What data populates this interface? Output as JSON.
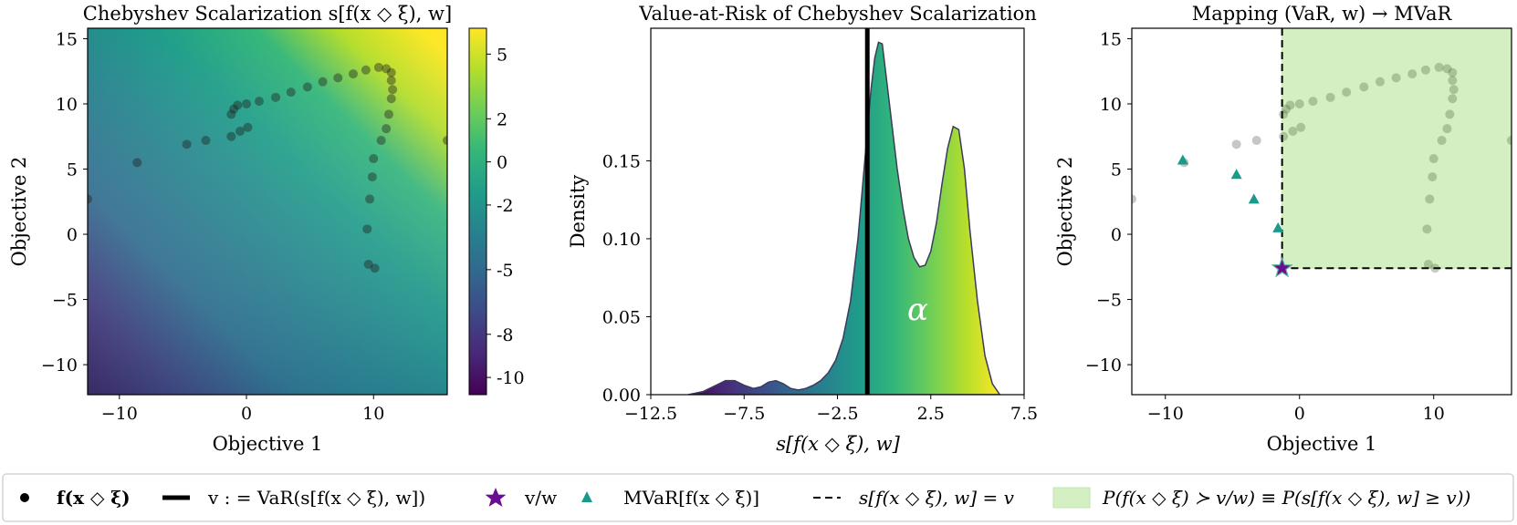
{
  "figure": {
    "legend": {
      "items": [
        {
          "symbol": "dot",
          "label": "f(x ◇ ξ)"
        },
        {
          "symbol": "thick-line",
          "label": "v : = VaR(s[f(x ◇ ξ), w])"
        },
        {
          "symbol": "star",
          "label": "v/w"
        },
        {
          "symbol": "triangle",
          "label": "MVaR[f(x ◇ ξ)]"
        },
        {
          "symbol": "dashed-line",
          "label": "s[f(x ◇ ξ), w] = v"
        },
        {
          "symbol": "green-patch",
          "label": "P(f(x ◇ ξ) ≻ v/w) ≡ P(s[f(x ◇ ξ), w] ≥ v))"
        }
      ]
    },
    "colors": {
      "viridis": [
        "#440154",
        "#482878",
        "#3e4989",
        "#31688e",
        "#26828e",
        "#1f9e89",
        "#35b779",
        "#6ece58",
        "#b5de2b",
        "#fde725"
      ],
      "star": "#6a0d91",
      "triangle": "#1a9a8a",
      "patch": "#d4efc2",
      "patch_edge": "#c4e6b0"
    }
  },
  "chart_data": [
    {
      "type": "scatter",
      "panel": "left",
      "title": "Chebyshev Scalarization   s[f(x ◇ ξ), w]",
      "xlabel": "Objective 1",
      "ylabel": "Objective 2",
      "xlim": [
        -12.5,
        15.8
      ],
      "ylim": [
        -12.3,
        15.8
      ],
      "xticks": [
        -10,
        0,
        10
      ],
      "xticklabels": [
        "−10",
        "0",
        "10"
      ],
      "yticks": [
        -10,
        -5,
        0,
        5,
        10,
        15
      ],
      "yticklabels": [
        "−10",
        "−5",
        "0",
        "5",
        "10",
        "15"
      ],
      "colorbar": {
        "range": [
          -10.8,
          6.2
        ],
        "ticks": [
          5,
          2,
          0,
          -2,
          -5,
          -8,
          -10
        ],
        "ticklabels": [
          "5",
          "2",
          "0",
          "-2",
          "-5",
          "-8",
          "-10"
        ]
      },
      "points": [
        [
          -12.5,
          2.7
        ],
        [
          -8.6,
          5.5
        ],
        [
          -4.7,
          6.9
        ],
        [
          -3.2,
          7.2
        ],
        [
          -1.2,
          7.5
        ],
        [
          -0.5,
          7.9
        ],
        [
          0.1,
          8.2
        ],
        [
          -1.2,
          9.2
        ],
        [
          -1.0,
          9.6
        ],
        [
          -0.7,
          9.9
        ],
        [
          0.0,
          10.0
        ],
        [
          1.0,
          10.2
        ],
        [
          2.3,
          10.5
        ],
        [
          3.5,
          10.9
        ],
        [
          4.8,
          11.3
        ],
        [
          6.0,
          11.7
        ],
        [
          7.2,
          12.0
        ],
        [
          8.4,
          12.3
        ],
        [
          9.4,
          12.6
        ],
        [
          10.4,
          12.8
        ],
        [
          11.0,
          12.7
        ],
        [
          11.4,
          12.4
        ],
        [
          11.4,
          11.8
        ],
        [
          11.5,
          11.1
        ],
        [
          11.4,
          10.4
        ],
        [
          11.2,
          9.2
        ],
        [
          11.0,
          8.1
        ],
        [
          10.6,
          7.2
        ],
        [
          10.0,
          5.8
        ],
        [
          9.9,
          4.4
        ],
        [
          9.7,
          2.7
        ],
        [
          9.5,
          0.4
        ],
        [
          9.6,
          -2.3
        ],
        [
          10.1,
          -2.6
        ],
        [
          15.8,
          7.2
        ]
      ]
    },
    {
      "type": "area",
      "panel": "middle",
      "title": "Value-at-Risk of Chebyshev Scalarization",
      "xlabel": "s[f(x ◇ ξ), w]",
      "ylabel": "Density",
      "xlim": [
        -12.5,
        7.5
      ],
      "ylim": [
        0,
        0.235
      ],
      "xticks": [
        -12.5,
        -7.5,
        -2.5,
        2.5,
        7.5
      ],
      "xticklabels": [
        "−12.5",
        "−7.5",
        "−2.5",
        "2.5",
        "7.5"
      ],
      "yticks": [
        0.0,
        0.05,
        0.1,
        0.15
      ],
      "yticklabels": [
        "0.00",
        "0.05",
        "0.10",
        "0.15"
      ],
      "var_line_x": -0.9,
      "annotation": "α",
      "x": [
        -10.5,
        -9.7,
        -9.0,
        -8.5,
        -8.0,
        -7.5,
        -7.0,
        -6.6,
        -6.2,
        -5.8,
        -5.4,
        -5.0,
        -4.6,
        -4.2,
        -3.8,
        -3.4,
        -3.0,
        -2.6,
        -2.2,
        -1.8,
        -1.4,
        -1.0,
        -0.7,
        -0.5,
        -0.3,
        -0.1,
        0.1,
        0.4,
        0.7,
        1.0,
        1.3,
        1.6,
        1.9,
        2.2,
        2.5,
        2.8,
        3.1,
        3.4,
        3.7,
        4.0,
        4.3,
        4.6,
        5.0,
        5.4,
        5.8,
        6.2
      ],
      "y": [
        0.0,
        0.002,
        0.006,
        0.009,
        0.009,
        0.006,
        0.004,
        0.005,
        0.008,
        0.009,
        0.007,
        0.004,
        0.003,
        0.004,
        0.006,
        0.009,
        0.014,
        0.022,
        0.036,
        0.06,
        0.1,
        0.155,
        0.196,
        0.216,
        0.226,
        0.225,
        0.205,
        0.175,
        0.145,
        0.12,
        0.1,
        0.088,
        0.082,
        0.083,
        0.092,
        0.11,
        0.135,
        0.158,
        0.172,
        0.17,
        0.145,
        0.105,
        0.06,
        0.025,
        0.007,
        0.0
      ]
    },
    {
      "type": "scatter",
      "panel": "right",
      "title": "Mapping (VaR, w) → MVaR",
      "xlabel": "Objective 1",
      "ylabel": "Objective 2",
      "xlim": [
        -12.5,
        15.8
      ],
      "ylim": [
        -12.3,
        15.8
      ],
      "xticks": [
        -10,
        0,
        10
      ],
      "xticklabels": [
        "−10",
        "0",
        "10"
      ],
      "yticks": [
        -10,
        -5,
        0,
        5,
        10,
        15
      ],
      "yticklabels": [
        "−10",
        "−5",
        "0",
        "5",
        "10",
        "15"
      ],
      "star": [
        -1.3,
        -2.6
      ],
      "mvar_triangles": [
        [
          -8.7,
          5.7
        ],
        [
          -4.7,
          4.6
        ],
        [
          -3.4,
          2.7
        ],
        [
          -1.6,
          0.5
        ],
        [
          -1.3,
          -2.6
        ]
      ],
      "dominated_region": {
        "x_from": -1.3,
        "y_from": -2.6
      }
    }
  ]
}
